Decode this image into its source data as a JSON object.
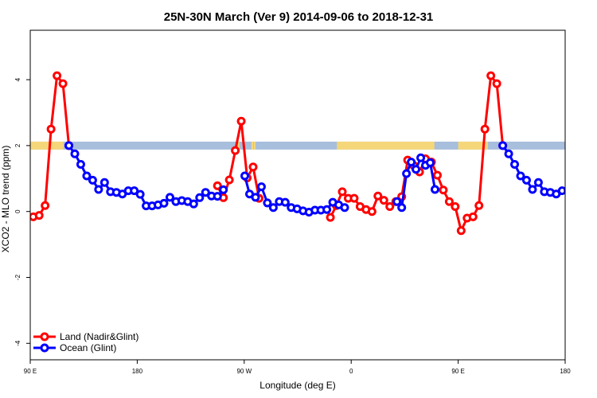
{
  "chart_data": {
    "type": "line",
    "title": "25N-30N March (Ver 9)   2014-09-06 to 2018-12-31",
    "xlabel": "Longitude (deg E)",
    "ylabel": "XCO2 - MLO trend (ppm)",
    "xlim": [
      90,
      540
    ],
    "ylim": [
      -4.5,
      5.5
    ],
    "x_ticks": [
      {
        "value": 90,
        "label": "90 E"
      },
      {
        "value": 180,
        "label": "180"
      },
      {
        "value": 270,
        "label": "90 W"
      },
      {
        "value": 360,
        "label": "0"
      },
      {
        "value": 450,
        "label": "90 E"
      },
      {
        "value": 540,
        "label": "180"
      }
    ],
    "y_ticks": [
      -4,
      -2,
      0,
      2,
      4
    ],
    "grid": false,
    "legend_position": "bottom-left",
    "band": {
      "y_range": [
        1.88,
        2.12
      ],
      "land_color": "#F5D77A",
      "ocean_color": "#A7BEDC",
      "land_segments": [
        [
          90,
          118
        ],
        [
          264.5,
          266
        ],
        [
          269,
          270.5
        ],
        [
          276,
          277.5
        ],
        [
          278,
          279.5
        ],
        [
          348,
          430
        ],
        [
          450,
          475
        ]
      ]
    },
    "series": [
      {
        "name": "Land (Nadir&Glint)",
        "color": "#FF0000",
        "segments": [
          [
            [
              92.5,
              -0.16
            ],
            [
              97.5,
              -0.12
            ],
            [
              102.5,
              0.18
            ],
            [
              107.5,
              2.5
            ],
            [
              112.5,
              4.12
            ],
            [
              117.5,
              3.88
            ],
            [
              122.5,
              2.0
            ]
          ],
          [
            [
              247.5,
              0.78
            ],
            [
              252.5,
              0.42
            ],
            [
              257.5,
              0.96
            ],
            [
              262.5,
              1.85
            ],
            [
              267.5,
              2.74
            ],
            [
              272.5,
              1.02
            ],
            [
              277.5,
              1.35
            ],
            [
              282.5,
              0.4
            ]
          ],
          [
            [
              342.5,
              -0.18
            ],
            [
              347.5,
              0.18
            ],
            [
              352.5,
              0.6
            ],
            [
              357.5,
              0.4
            ],
            [
              362.5,
              0.4
            ],
            [
              367.5,
              0.15
            ],
            [
              372.5,
              0.06
            ],
            [
              377.5,
              0.0
            ],
            [
              382.5,
              0.47
            ],
            [
              387.5,
              0.34
            ],
            [
              392.5,
              0.15
            ],
            [
              397.5,
              0.3
            ],
            [
              402.5,
              0.45
            ],
            [
              407.5,
              1.56
            ],
            [
              412.5,
              1.4
            ],
            [
              417.5,
              1.2
            ],
            [
              422.5,
              1.6
            ],
            [
              427.5,
              1.5
            ],
            [
              432.5,
              1.1
            ],
            [
              437.5,
              0.65
            ],
            [
              442.5,
              0.3
            ],
            [
              447.5,
              0.15
            ],
            [
              452.5,
              -0.58
            ],
            [
              457.5,
              -0.2
            ],
            [
              462.5,
              -0.16
            ],
            [
              467.5,
              0.18
            ],
            [
              472.5,
              2.5
            ],
            [
              477.5,
              4.12
            ],
            [
              482.5,
              3.88
            ],
            [
              487.5,
              2.0
            ]
          ]
        ]
      },
      {
        "name": "Ocean (Glint)",
        "color": "#0000FF",
        "segments": [
          [
            [
              122.5,
              2.0
            ],
            [
              127.5,
              1.75
            ],
            [
              132.5,
              1.43
            ],
            [
              137.5,
              1.08
            ],
            [
              142.5,
              0.95
            ],
            [
              147.5,
              0.67
            ],
            [
              152.5,
              0.88
            ],
            [
              157.5,
              0.6
            ],
            [
              162.5,
              0.58
            ],
            [
              167.5,
              0.53
            ],
            [
              172.5,
              0.63
            ],
            [
              177.5,
              0.63
            ],
            [
              182.5,
              0.52
            ],
            [
              187.5,
              0.17
            ],
            [
              192.5,
              0.17
            ],
            [
              197.5,
              0.2
            ],
            [
              202.5,
              0.25
            ],
            [
              207.5,
              0.43
            ],
            [
              212.5,
              0.3
            ],
            [
              217.5,
              0.33
            ],
            [
              222.5,
              0.3
            ],
            [
              227.5,
              0.23
            ],
            [
              232.5,
              0.42
            ],
            [
              237.5,
              0.58
            ],
            [
              242.5,
              0.47
            ],
            [
              247.5,
              0.46
            ],
            [
              252.5,
              0.66
            ]
          ],
          [
            [
              270.5,
              1.08
            ],
            [
              274.5,
              0.53
            ],
            [
              279.5,
              0.43
            ],
            [
              284.5,
              0.75
            ],
            [
              289.5,
              0.26
            ],
            [
              294.5,
              0.12
            ],
            [
              299.5,
              0.3
            ],
            [
              304.5,
              0.28
            ],
            [
              309.5,
              0.12
            ],
            [
              314.5,
              0.08
            ],
            [
              319.5,
              0.02
            ],
            [
              324.5,
              -0.02
            ],
            [
              329.5,
              0.04
            ],
            [
              334.5,
              0.04
            ],
            [
              339.5,
              0.06
            ],
            [
              344.5,
              0.28
            ],
            [
              349.5,
              0.2
            ],
            [
              354.5,
              0.12
            ]
          ],
          [
            [
              398.5,
              0.3
            ],
            [
              402.5,
              0.12
            ],
            [
              406.5,
              1.15
            ],
            [
              410.5,
              1.5
            ],
            [
              414.5,
              1.28
            ],
            [
              418.5,
              1.63
            ],
            [
              422.5,
              1.4
            ],
            [
              426.5,
              1.48
            ],
            [
              430.5,
              0.67
            ]
          ],
          [
            [
              487.5,
              2.0
            ],
            [
              492.5,
              1.75
            ],
            [
              497.5,
              1.43
            ],
            [
              502.5,
              1.08
            ],
            [
              507.5,
              0.95
            ],
            [
              512.5,
              0.67
            ],
            [
              517.5,
              0.88
            ],
            [
              522.5,
              0.6
            ],
            [
              527.5,
              0.58
            ],
            [
              532.5,
              0.53
            ],
            [
              537.5,
              0.63
            ],
            [
              542.5,
              0.63
            ]
          ]
        ]
      }
    ]
  }
}
